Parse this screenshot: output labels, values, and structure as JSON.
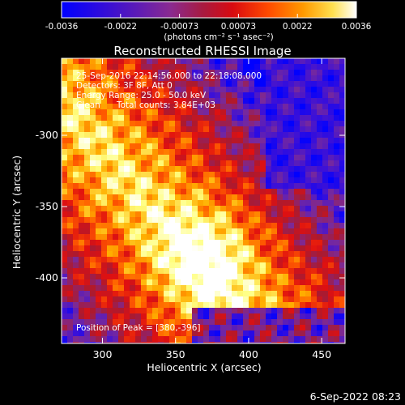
{
  "colorbar": {
    "ticks": [
      "-0.0036",
      "-0.0022",
      "-0.00073",
      "0.00073",
      "0.0022",
      "0.0036"
    ],
    "units": "(photons cm⁻² s⁻¹ asec⁻²)"
  },
  "plot": {
    "title": "Reconstructed RHESSI Image",
    "x_label": "Heliocentric X (arcsec)",
    "y_label": "Heliocentric Y (arcsec)",
    "x_ticks": [
      "300",
      "350",
      "400",
      "450"
    ],
    "y_ticks": [
      "-300",
      "-350",
      "-400"
    ],
    "xlim": [
      272,
      466
    ],
    "ylim": [
      -446,
      -246
    ],
    "x_tick_values": [
      300,
      350,
      400,
      450
    ],
    "y_tick_values": [
      -300,
      -350,
      -400
    ]
  },
  "annotations": {
    "time_range": "25-Sep-2016 22:14:56.000 to 22:18:08.000",
    "detectors": "Detectors: 3F 8F, Att 0",
    "energy_range": "Energy Range: 25.0 - 50.0 keV",
    "clean_label": "Clean",
    "total_counts": "Total counts: 3.84E+03",
    "peak_position": "Position of Peak = [380,-396]"
  },
  "footer": {
    "timestamp": "6-Sep-2022 08:23"
  },
  "colors": {
    "background": "#000000",
    "text": "#ffffff",
    "colormap": [
      "#0000ff",
      "#3b10d8",
      "#7a2a9a",
      "#aa1a30",
      "#e01010",
      "#ff5a00",
      "#ffb000",
      "#ffff80",
      "#ffffff"
    ]
  }
}
